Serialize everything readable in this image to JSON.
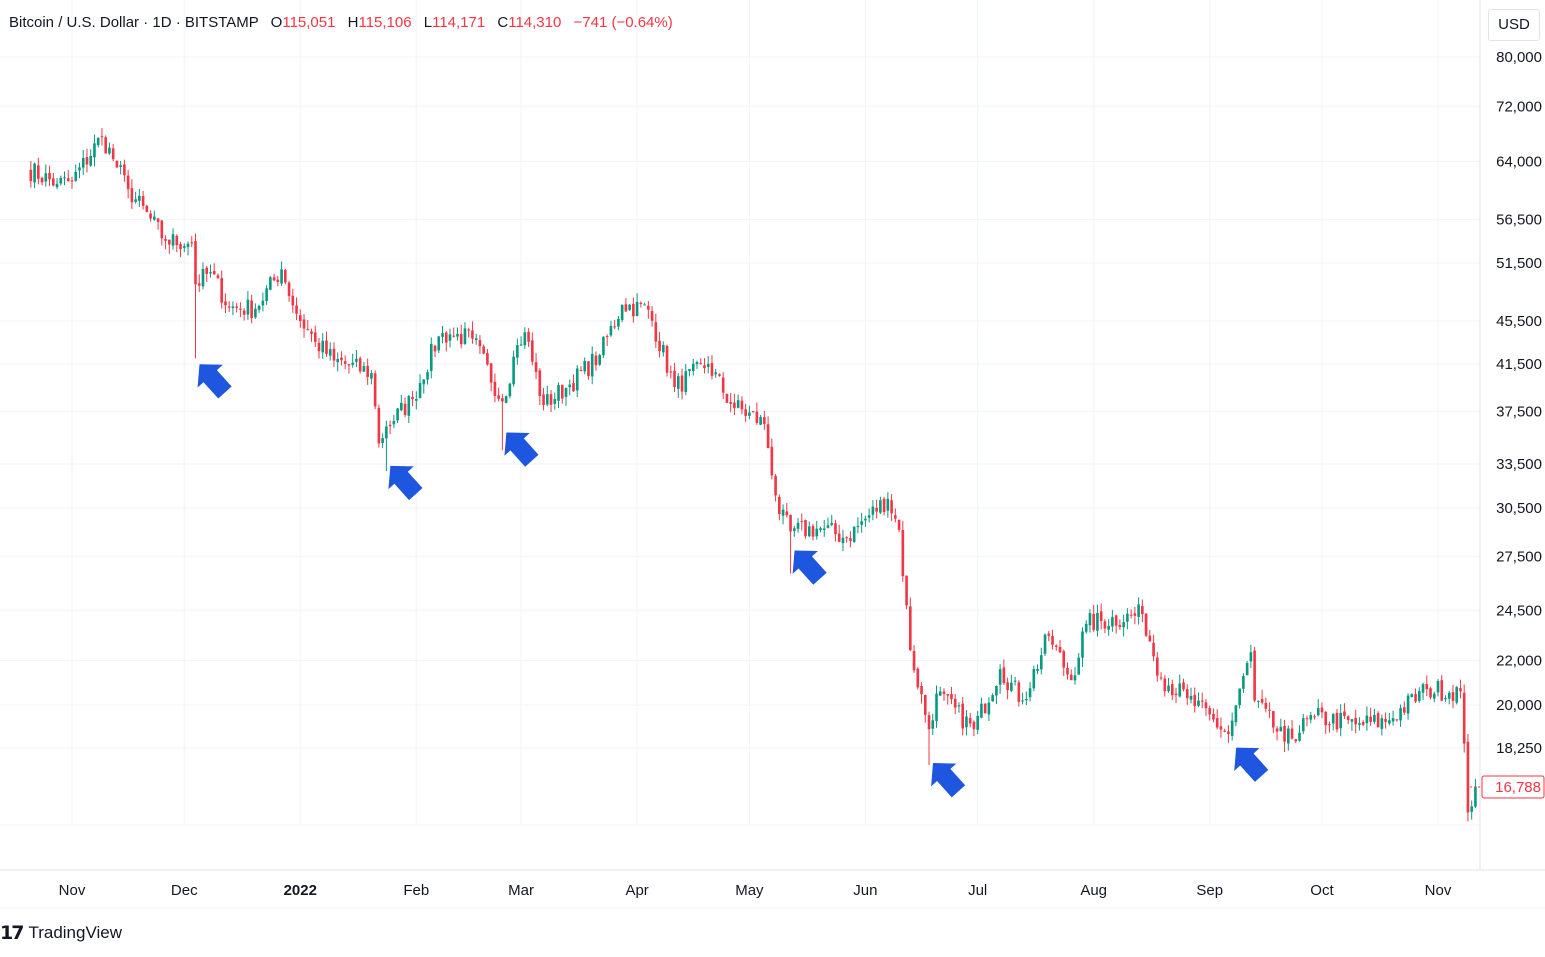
{
  "legend": {
    "symbol": "Bitcoin / U.S. Dollar · 1D · BITSTAMP",
    "open_label": "O",
    "open": "115,051",
    "high_label": "H",
    "high": "115,106",
    "low_label": "L",
    "low": "114,171",
    "close_label": "C",
    "close": "114,310",
    "change": "−741 (−0.64%)"
  },
  "currency": "USD",
  "brand": {
    "logo": "17",
    "name": "TradingView"
  },
  "colors": {
    "up": "#089981",
    "down": "#f23645",
    "arrow": "#1e56e0",
    "grid": "#f0f3fa",
    "text": "#131722"
  },
  "chart_data": {
    "type": "candlestick",
    "scale": "log",
    "ylim": [
      15000,
      82000
    ],
    "y_ticks": [
      80000,
      72000,
      64000,
      56500,
      51500,
      45500,
      41500,
      37500,
      33500,
      30500,
      27500,
      24500,
      22000,
      20000,
      18250
    ],
    "y_tick_labels": [
      "80,000",
      "72,000",
      "64,000",
      "56,500",
      "51,500",
      "45,500",
      "41,500",
      "37,500",
      "33,500",
      "30,500",
      "27,500",
      "24,500",
      "22,000",
      "20,000",
      "18,250"
    ],
    "x_labels": [
      "Nov",
      "Dec",
      "2022",
      "Feb",
      "Mar",
      "Apr",
      "May",
      "Jun",
      "Jul",
      "Aug",
      "Sep",
      "Oct",
      "Nov"
    ],
    "x_label_dates": [
      "2021-11-01",
      "2021-12-01",
      "2022-01-01",
      "2022-02-01",
      "2022-03-01",
      "2022-04-01",
      "2022-05-01",
      "2022-06-01",
      "2022-07-01",
      "2022-08-01",
      "2022-09-01",
      "2022-10-01",
      "2022-11-01"
    ],
    "last_price": 16788,
    "last_price_label": "16,788",
    "anchors": [
      [
        "2021-10-20",
        63000
      ],
      [
        "2021-10-28",
        61000
      ],
      [
        "2021-11-01",
        61300
      ],
      [
        "2021-11-09",
        67500
      ],
      [
        "2021-11-12",
        64300
      ],
      [
        "2021-11-16",
        60300
      ],
      [
        "2021-11-26",
        54000
      ],
      [
        "2021-12-03",
        53800
      ],
      [
        "2021-12-04",
        49200
      ],
      [
        "2021-12-08",
        50500
      ],
      [
        "2021-12-13",
        46800
      ],
      [
        "2021-12-20",
        46700
      ],
      [
        "2021-12-27",
        50800
      ],
      [
        "2021-12-31",
        46200
      ],
      [
        "2022-01-05",
        43500
      ],
      [
        "2022-01-10",
        41800
      ],
      [
        "2022-01-20",
        40700
      ],
      [
        "2022-01-22",
        35000
      ],
      [
        "2022-01-24",
        36300
      ],
      [
        "2022-01-31",
        38500
      ],
      [
        "2022-02-07",
        44000
      ],
      [
        "2022-02-10",
        44200
      ],
      [
        "2022-02-16",
        43800
      ],
      [
        "2022-02-24",
        38300
      ],
      [
        "2022-02-28",
        43200
      ],
      [
        "2022-03-02",
        44400
      ],
      [
        "2022-03-07",
        38000
      ],
      [
        "2022-03-14",
        39700
      ],
      [
        "2022-03-22",
        42300
      ],
      [
        "2022-03-28",
        47100
      ],
      [
        "2022-04-04",
        46600
      ],
      [
        "2022-04-11",
        39500
      ],
      [
        "2022-04-20",
        41500
      ],
      [
        "2022-04-26",
        38100
      ],
      [
        "2022-05-05",
        36500
      ],
      [
        "2022-05-09",
        30100
      ],
      [
        "2022-05-12",
        29000
      ],
      [
        "2022-05-20",
        29200
      ],
      [
        "2022-05-27",
        28600
      ],
      [
        "2022-06-01",
        29800
      ],
      [
        "2022-06-07",
        31100
      ],
      [
        "2022-06-10",
        29100
      ],
      [
        "2022-06-13",
        22500
      ],
      [
        "2022-06-18",
        19000
      ],
      [
        "2022-06-20",
        20500
      ],
      [
        "2022-06-30",
        19000
      ],
      [
        "2022-07-07",
        21600
      ],
      [
        "2022-07-13",
        20200
      ],
      [
        "2022-07-20",
        23200
      ],
      [
        "2022-07-26",
        21100
      ],
      [
        "2022-07-30",
        23800
      ],
      [
        "2022-08-14",
        24300
      ],
      [
        "2022-08-19",
        21200
      ],
      [
        "2022-08-26",
        20300
      ],
      [
        "2022-09-06",
        18800
      ],
      [
        "2022-09-12",
        22400
      ],
      [
        "2022-09-13",
        20200
      ],
      [
        "2022-09-21",
        18500
      ],
      [
        "2022-09-29",
        19500
      ],
      [
        "2022-10-10",
        19200
      ],
      [
        "2022-10-18",
        19300
      ],
      [
        "2022-10-29",
        20700
      ],
      [
        "2022-11-07",
        20600
      ],
      [
        "2022-11-09",
        15900
      ],
      [
        "2022-11-11",
        16800
      ]
    ],
    "wicks": [
      [
        "2021-12-04",
        42000
      ],
      [
        "2022-01-24",
        33000
      ],
      [
        "2022-02-24",
        34500
      ],
      [
        "2022-05-12",
        26500
      ],
      [
        "2022-06-18",
        17600
      ],
      [
        "2022-09-21",
        18100
      ],
      [
        "2022-11-09",
        15600
      ]
    ]
  },
  "annotations": {
    "arrows": [
      {
        "date": "2021-12-04",
        "price": 42000
      },
      {
        "date": "2022-01-24",
        "price": 33800
      },
      {
        "date": "2022-02-24",
        "price": 36300
      },
      {
        "date": "2022-05-12",
        "price": 28200
      },
      {
        "date": "2022-06-18",
        "price": 17900
      },
      {
        "date": "2022-09-07",
        "price": 18500
      }
    ]
  }
}
